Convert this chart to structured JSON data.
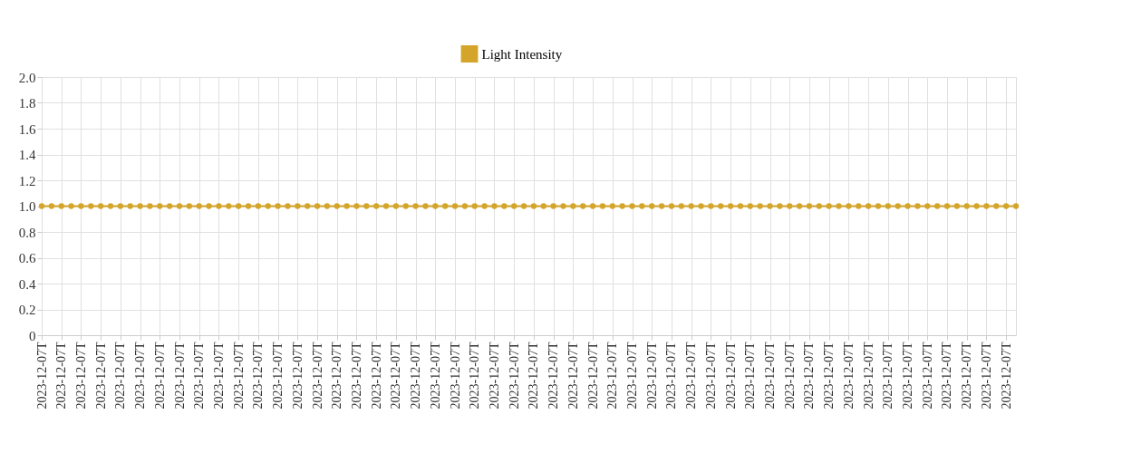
{
  "chart_data": {
    "type": "line",
    "categories": [
      "2023-12-07T",
      null,
      "2023-12-07T",
      null,
      "2023-12-07T",
      null,
      "2023-12-07T",
      null,
      "2023-12-07T",
      null,
      "2023-12-07T",
      null,
      "2023-12-07T",
      null,
      "2023-12-07T",
      null,
      "2023-12-07T",
      null,
      "2023-12-07T",
      null,
      "2023-12-07T",
      null,
      "2023-12-07T",
      null,
      "2023-12-07T",
      null,
      "2023-12-07T",
      null,
      "2023-12-07T",
      null,
      "2023-12-07T",
      null,
      "2023-12-07T",
      null,
      "2023-12-07T",
      null,
      "2023-12-07T",
      null,
      "2023-12-07T",
      null,
      "2023-12-07T",
      null,
      "2023-12-07T",
      null,
      "2023-12-07T",
      null,
      "2023-12-07T",
      null,
      "2023-12-07T",
      null,
      "2023-12-07T",
      null,
      "2023-12-07T",
      null,
      "2023-12-07T",
      null,
      "2023-12-07T",
      null,
      "2023-12-07T",
      null,
      "2023-12-07T",
      null,
      "2023-12-07T",
      null,
      "2023-12-07T",
      null,
      "2023-12-07T",
      null,
      "2023-12-07T",
      null,
      "2023-12-07T",
      null,
      "2023-12-07T",
      null,
      "2023-12-07T",
      null,
      "2023-12-07T",
      null,
      "2023-12-07T",
      null,
      "2023-12-07T",
      null,
      "2023-12-07T",
      null,
      "2023-12-07T",
      null,
      "2023-12-07T",
      null,
      "2023-12-07T",
      null,
      "2023-12-07T",
      null,
      "2023-12-07T",
      null,
      "2023-12-07T",
      null,
      "2023-12-07T",
      null,
      "2023-12-07T",
      null
    ],
    "series": [
      {
        "name": "Light Intensity",
        "color": "#d4a52a",
        "values": [
          1,
          1,
          1,
          1,
          1,
          1,
          1,
          1,
          1,
          1,
          1,
          1,
          1,
          1,
          1,
          1,
          1,
          1,
          1,
          1,
          1,
          1,
          1,
          1,
          1,
          1,
          1,
          1,
          1,
          1,
          1,
          1,
          1,
          1,
          1,
          1,
          1,
          1,
          1,
          1,
          1,
          1,
          1,
          1,
          1,
          1,
          1,
          1,
          1,
          1,
          1,
          1,
          1,
          1,
          1,
          1,
          1,
          1,
          1,
          1,
          1,
          1,
          1,
          1,
          1,
          1,
          1,
          1,
          1,
          1,
          1,
          1,
          1,
          1,
          1,
          1,
          1,
          1,
          1,
          1,
          1,
          1,
          1,
          1,
          1,
          1,
          1,
          1,
          1,
          1,
          1,
          1,
          1,
          1,
          1,
          1,
          1,
          1,
          1,
          1
        ]
      }
    ],
    "ylim": [
      0,
      2.0
    ],
    "yticks": [
      0,
      {
        "value": 0.2,
        "label": "0.2"
      },
      {
        "value": 0.4,
        "label": "0.4"
      },
      {
        "value": 0.6,
        "label": "0.6"
      },
      {
        "value": 0.8,
        "label": "0.8"
      },
      {
        "value": 1.0,
        "label": "1.0"
      },
      {
        "value": 1.2,
        "label": "1.2"
      },
      {
        "value": 1.4,
        "label": "1.4"
      },
      {
        "value": 1.6,
        "label": "1.6"
      },
      {
        "value": 1.8,
        "label": "1.8"
      },
      {
        "value": 2.0,
        "label": "2.0"
      }
    ],
    "grid": true,
    "legend": "top",
    "marker": "circle",
    "line_style": "solid"
  }
}
